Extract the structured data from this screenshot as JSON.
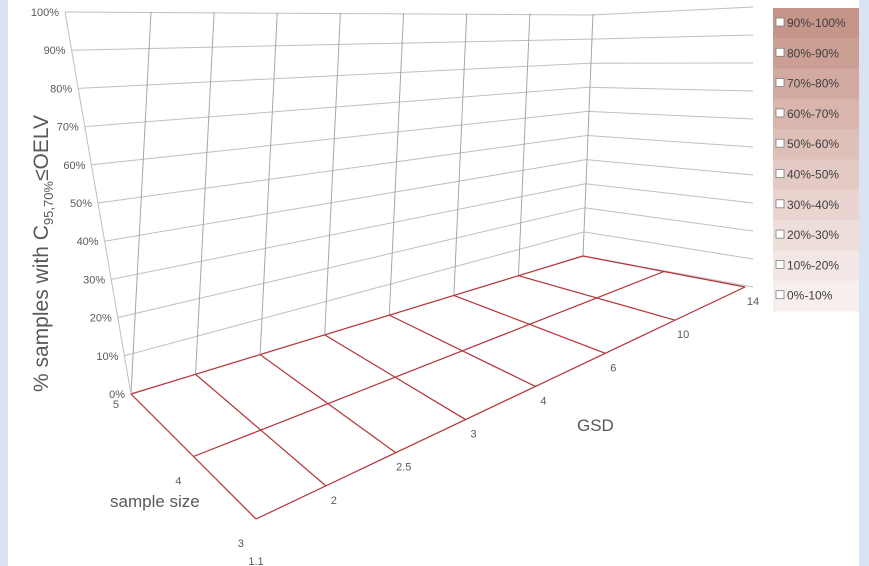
{
  "chart_data": {
    "type": "surface",
    "title": "",
    "zlabel_prefix": "% samples with C",
    "zlabel_subscript": "95,70%",
    "zlabel_suffix": "≤OELV",
    "xlabel": "GSD",
    "ylabel": "sample size",
    "gsd_values": [
      "1.1",
      "2",
      "2.5",
      "3",
      "4",
      "6",
      "10",
      "14"
    ],
    "sample_sizes": [
      "3",
      "4",
      "5"
    ],
    "z_ticks": [
      "0%",
      "10%",
      "20%",
      "30%",
      "40%",
      "50%",
      "60%",
      "70%",
      "80%",
      "90%",
      "100%"
    ],
    "zlim": [
      0,
      100
    ],
    "surface_percent": [
      [
        0,
        0,
        0,
        0,
        0,
        0,
        0,
        0
      ],
      [
        0,
        0,
        0,
        0,
        0,
        0,
        0,
        0
      ],
      [
        0,
        0,
        0,
        0,
        0,
        0,
        0,
        0
      ]
    ],
    "legend": [
      "90%-100%",
      "80%-90%",
      "70%-80%",
      "60%-70%",
      "50%-60%",
      "40%-50%",
      "30%-40%",
      "20%-30%",
      "10%-20%",
      "0%-10%"
    ],
    "legend_colors": [
      "#c5958a",
      "#cc9f95",
      "#d3aaa1",
      "#d9b5ad",
      "#dfc0b9",
      "#e4cac4",
      "#e9d4cf",
      "#eedeDA",
      "#f2e7e4",
      "#f6efed"
    ],
    "grid": true,
    "legend_position": "right",
    "surface_color": "#b8353a"
  }
}
